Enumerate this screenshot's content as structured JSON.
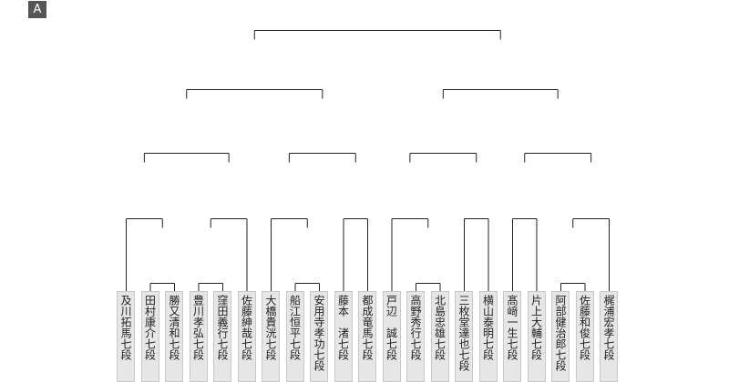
{
  "badge": "A",
  "players": [
    "及川拓馬七段",
    "田村康介七段",
    "勝又清和七段",
    "豊川孝弘七段",
    "窪田義行七段",
    "佐藤紳哉七段",
    "大橋貴洸七段",
    "船江恒平七段",
    "安用寺孝功七段",
    "藤本　渚七段",
    "都成竜馬七段",
    "戸辺　誠七段",
    "高野秀行七段",
    "北島忠雄七段",
    "三枚堂達也七段",
    "横山泰明七段",
    "髙﨑一生七段",
    "片上大輔七段",
    "阿部健治郎七段",
    "佐藤和俊七段",
    "梶浦宏孝七段"
  ]
}
